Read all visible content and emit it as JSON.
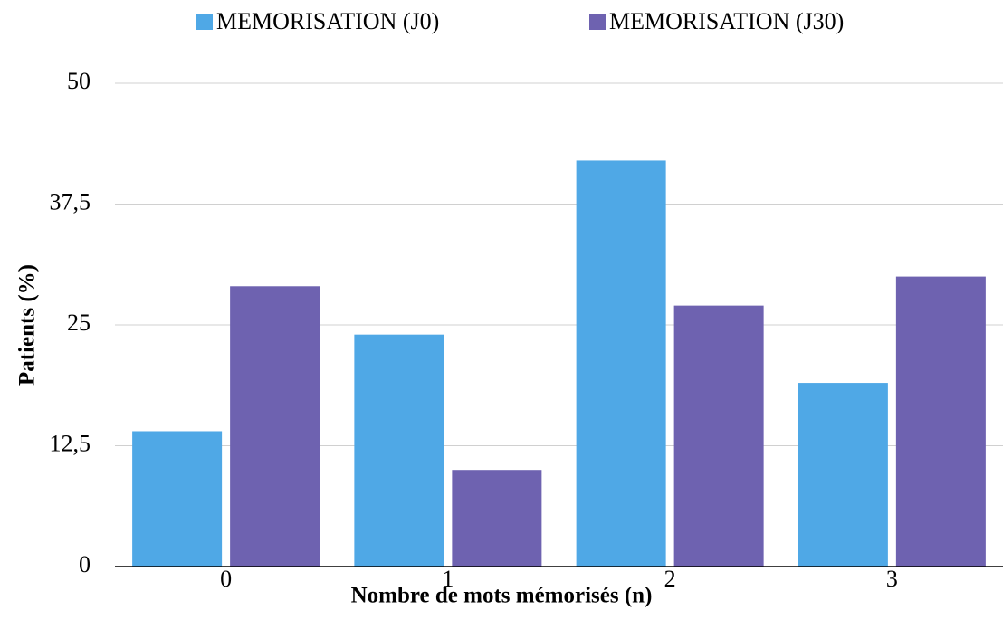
{
  "chart_data": {
    "type": "bar",
    "x_label": "Nombre de mots mémorisés (n)",
    "y_label": "Patients (%)",
    "categories": [
      "0",
      "1",
      "2",
      "3"
    ],
    "series": [
      {
        "name": "MEMORISATION (J0)",
        "color": "#4fa8e6",
        "values": [
          14,
          24,
          42,
          19
        ]
      },
      {
        "name": "MEMORISATION (J30)",
        "color": "#6e62b0",
        "values": [
          29,
          10,
          27,
          30
        ]
      }
    ],
    "ylim": [
      0,
      50
    ],
    "yticks": [
      0,
      {
        "value": 12.5,
        "label": "12,5"
      },
      25,
      {
        "value": 37.5,
        "label": "37,5"
      },
      50
    ],
    "grid": true,
    "legend": "top"
  }
}
